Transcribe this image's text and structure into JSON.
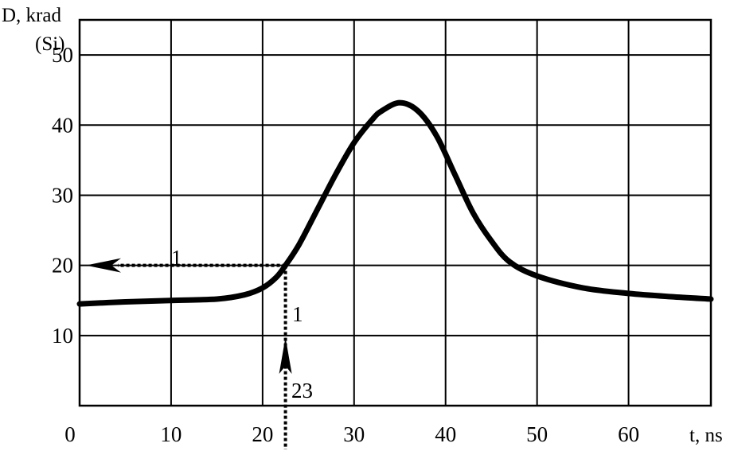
{
  "chart_data": {
    "type": "line",
    "title": "",
    "ylabel_line1": "D, krad",
    "ylabel_line2": "(Si)",
    "xlabel": "t, ns",
    "xlim": [
      0,
      69
    ],
    "ylim": [
      0,
      55
    ],
    "x_ticks": [
      "0",
      "10",
      "20",
      "30",
      "40",
      "50",
      "60"
    ],
    "y_ticks": [
      "10",
      "20",
      "30",
      "40",
      "50"
    ],
    "grid": true,
    "series": [
      {
        "x": [
          0,
          5,
          10,
          15,
          18,
          20,
          21.5,
          22.5,
          24,
          26,
          28,
          30,
          32,
          33,
          35,
          37,
          39,
          41,
          43,
          45,
          47,
          50,
          55,
          60,
          65,
          69
        ],
        "y": [
          14.5,
          14.8,
          15,
          15.2,
          15.8,
          16.8,
          18.3,
          20,
          23,
          28,
          33,
          37.5,
          40.8,
          42,
          43.2,
          42,
          38.5,
          33,
          27.5,
          23.5,
          20.5,
          18.5,
          16.8,
          16,
          15.5,
          15.2
        ]
      }
    ],
    "annotations": {
      "marker_x": 22.5,
      "marker_y": 20,
      "label_horizontal": "1",
      "label_vertical": "1",
      "label_bottom": "23"
    }
  }
}
